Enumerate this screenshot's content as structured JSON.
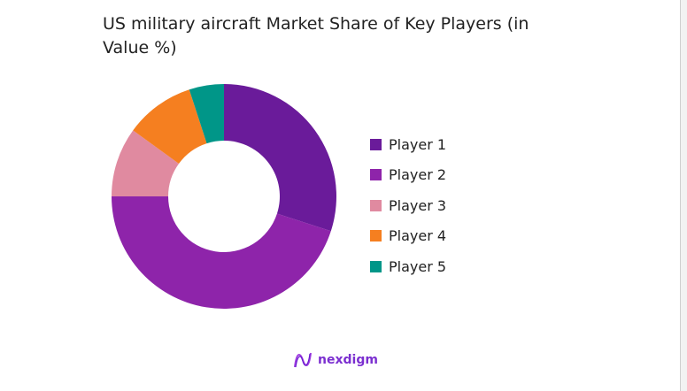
{
  "chart_data": {
    "type": "pie",
    "donut": true,
    "title": "US military aircraft Market Share of Key Players (in Value %)",
    "categories": [
      "Player 1",
      "Player 2",
      "Player 3",
      "Player 4",
      "Player 5"
    ],
    "values": [
      30,
      45,
      10,
      10,
      5
    ],
    "colors": [
      "#6a1b9a",
      "#8e24aa",
      "#e08aa0",
      "#f57f20",
      "#009688"
    ],
    "legend_position": "right"
  },
  "brand": {
    "name": "nexdigm",
    "color": "#7b2fd0"
  }
}
